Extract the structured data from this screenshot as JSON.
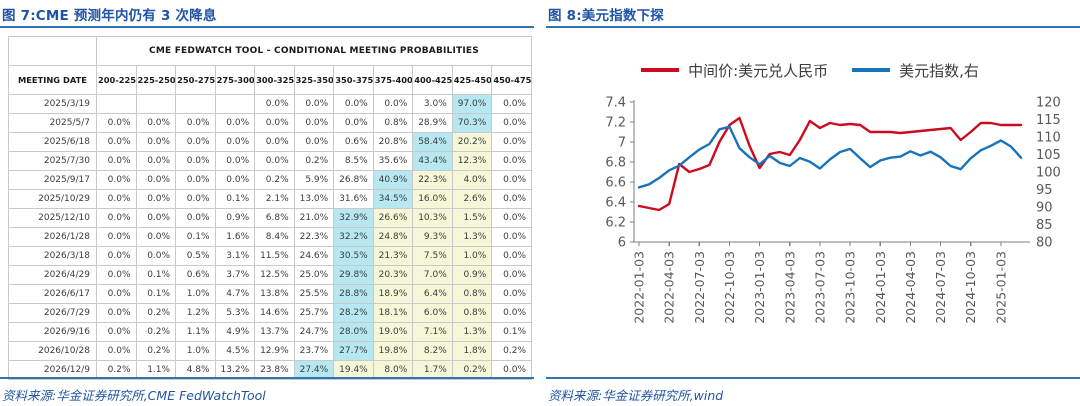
{
  "accent_colors": {
    "title_blue": "#1f53a6",
    "rule_blue": "#2e75b6",
    "source_blue": "#2155a3"
  },
  "left_panel": {
    "title": "图 7:CME 预测年内仍有 3 次降息",
    "source": "资料来源:华金证券研究所,CME FedWatchTool",
    "table": {
      "header_title": "CME FEDWATCH TOOL - CONDITIONAL MEETING PROBABILITIES",
      "date_col_header": "MEETING DATE",
      "rate_columns": [
        "200-225",
        "225-250",
        "250-275",
        "275-300",
        "300-325",
        "325-350",
        "350-375",
        "375-400",
        "400-425",
        "425-450",
        "450-475"
      ],
      "highlight_colors": {
        "modal_cell_cyan": "#b7e8f2",
        "tail_cell_yellow": "#f6f6d8"
      },
      "rows": [
        {
          "date": "2025/3/19",
          "values": [
            "",
            "",
            "",
            "",
            "0.0%",
            "0.0%",
            "0.0%",
            "0.0%",
            "3.0%",
            "97.0%",
            "0.0%"
          ],
          "cyan": 9,
          "yellow": []
        },
        {
          "date": "2025/5/7",
          "values": [
            "0.0%",
            "0.0%",
            "0.0%",
            "0.0%",
            "0.0%",
            "0.0%",
            "0.0%",
            "0.8%",
            "28.9%",
            "70.3%",
            "0.0%"
          ],
          "cyan": 9,
          "yellow": []
        },
        {
          "date": "2025/6/18",
          "values": [
            "0.0%",
            "0.0%",
            "0.0%",
            "0.0%",
            "0.0%",
            "0.0%",
            "0.6%",
            "20.8%",
            "58.4%",
            "20.2%",
            "0.0%"
          ],
          "cyan": 8,
          "yellow": [
            9
          ]
        },
        {
          "date": "2025/7/30",
          "values": [
            "0.0%",
            "0.0%",
            "0.0%",
            "0.0%",
            "0.0%",
            "0.2%",
            "8.5%",
            "35.6%",
            "43.4%",
            "12.3%",
            "0.0%"
          ],
          "cyan": 8,
          "yellow": [
            9
          ]
        },
        {
          "date": "2025/9/17",
          "values": [
            "0.0%",
            "0.0%",
            "0.0%",
            "0.0%",
            "0.2%",
            "5.9%",
            "26.8%",
            "40.9%",
            "22.3%",
            "4.0%",
            "0.0%"
          ],
          "cyan": 7,
          "yellow": [
            8,
            9
          ]
        },
        {
          "date": "2025/10/29",
          "values": [
            "0.0%",
            "0.0%",
            "0.0%",
            "0.1%",
            "2.1%",
            "13.0%",
            "31.6%",
            "34.5%",
            "16.0%",
            "2.6%",
            "0.0%"
          ],
          "cyan": 7,
          "yellow": [
            8,
            9
          ]
        },
        {
          "date": "2025/12/10",
          "values": [
            "0.0%",
            "0.0%",
            "0.0%",
            "0.9%",
            "6.8%",
            "21.0%",
            "32.9%",
            "26.6%",
            "10.3%",
            "1.5%",
            "0.0%"
          ],
          "cyan": 6,
          "yellow": [
            7,
            8,
            9
          ]
        },
        {
          "date": "2026/1/28",
          "values": [
            "0.0%",
            "0.0%",
            "0.1%",
            "1.6%",
            "8.4%",
            "22.3%",
            "32.2%",
            "24.8%",
            "9.3%",
            "1.3%",
            "0.0%"
          ],
          "cyan": 6,
          "yellow": [
            7,
            8,
            9
          ]
        },
        {
          "date": "2026/3/18",
          "values": [
            "0.0%",
            "0.0%",
            "0.5%",
            "3.1%",
            "11.5%",
            "24.6%",
            "30.5%",
            "21.3%",
            "7.5%",
            "1.0%",
            "0.0%"
          ],
          "cyan": 6,
          "yellow": [
            7,
            8,
            9
          ]
        },
        {
          "date": "2026/4/29",
          "values": [
            "0.0%",
            "0.1%",
            "0.6%",
            "3.7%",
            "12.5%",
            "25.0%",
            "29.8%",
            "20.3%",
            "7.0%",
            "0.9%",
            "0.0%"
          ],
          "cyan": 6,
          "yellow": [
            7,
            8,
            9
          ]
        },
        {
          "date": "2026/6/17",
          "values": [
            "0.0%",
            "0.1%",
            "1.0%",
            "4.7%",
            "13.8%",
            "25.5%",
            "28.8%",
            "18.9%",
            "6.4%",
            "0.8%",
            "0.0%"
          ],
          "cyan": 6,
          "yellow": [
            7,
            8,
            9
          ]
        },
        {
          "date": "2026/7/29",
          "values": [
            "0.0%",
            "0.2%",
            "1.2%",
            "5.3%",
            "14.6%",
            "25.7%",
            "28.2%",
            "18.1%",
            "6.0%",
            "0.8%",
            "0.0%"
          ],
          "cyan": 6,
          "yellow": [
            7,
            8,
            9
          ]
        },
        {
          "date": "2026/9/16",
          "values": [
            "0.0%",
            "0.2%",
            "1.1%",
            "4.9%",
            "13.7%",
            "24.7%",
            "28.0%",
            "19.0%",
            "7.1%",
            "1.3%",
            "0.1%"
          ],
          "cyan": 6,
          "yellow": [
            7,
            8,
            9
          ]
        },
        {
          "date": "2026/10/28",
          "values": [
            "0.0%",
            "0.2%",
            "1.0%",
            "4.5%",
            "12.9%",
            "23.7%",
            "27.7%",
            "19.8%",
            "8.2%",
            "1.8%",
            "0.2%"
          ],
          "cyan": 6,
          "yellow": [
            7,
            8,
            9
          ]
        },
        {
          "date": "2026/12/9",
          "values": [
            "0.2%",
            "1.1%",
            "4.8%",
            "13.2%",
            "23.8%",
            "27.4%",
            "19.4%",
            "8.0%",
            "1.7%",
            "0.2%",
            "0.0%"
          ],
          "cyan": 5,
          "yellow": [
            6,
            7,
            8,
            9
          ]
        }
      ]
    }
  },
  "right_panel": {
    "title": "图 8:美元指数下探",
    "source": "资料来源:华金证券研究所,wind"
  },
  "chart_data": {
    "type": "line",
    "title": "美元指数下探",
    "legend_position": "top",
    "grid": false,
    "x_months": [
      "2022-01",
      "2022-02",
      "2022-03",
      "2022-04",
      "2022-05",
      "2022-06",
      "2022-07",
      "2022-08",
      "2022-09",
      "2022-10",
      "2022-11",
      "2022-12",
      "2023-01",
      "2023-02",
      "2023-03",
      "2023-04",
      "2023-05",
      "2023-06",
      "2023-07",
      "2023-08",
      "2023-09",
      "2023-10",
      "2023-11",
      "2023-12",
      "2024-01",
      "2024-02",
      "2024-03",
      "2024-04",
      "2024-05",
      "2024-06",
      "2024-07",
      "2024-08",
      "2024-09",
      "2024-10",
      "2024-11",
      "2024-12",
      "2025-01",
      "2025-02",
      "2025-03"
    ],
    "x_tick_labels": [
      "2022-01-03",
      "2022-04-03",
      "2022-07-03",
      "2022-10-03",
      "2023-01-03",
      "2023-04-03",
      "2023-07-03",
      "2023-10-03",
      "2024-01-03",
      "2024-04-03",
      "2024-07-03",
      "2024-10-03",
      "2025-01-03"
    ],
    "left_axis": {
      "min": 6,
      "max": 7.4,
      "ticks": [
        "7.4",
        "7.2",
        "7",
        "6.8",
        "6.6",
        "6.4",
        "6.2",
        "6"
      ]
    },
    "right_axis": {
      "min": 80,
      "max": 120,
      "ticks": [
        "120",
        "115",
        "110",
        "105",
        "100",
        "95",
        "90",
        "85",
        "80"
      ]
    },
    "series": [
      {
        "name": "中间价:美元兑人民币",
        "color": "#ce0a1f",
        "axis": "left",
        "values": [
          6.36,
          6.34,
          6.32,
          6.38,
          6.78,
          6.7,
          6.73,
          6.77,
          7.0,
          7.17,
          7.24,
          6.96,
          6.74,
          6.88,
          6.9,
          6.87,
          7.02,
          7.21,
          7.14,
          7.19,
          7.17,
          7.18,
          7.17,
          7.1,
          7.1,
          7.1,
          7.09,
          7.1,
          7.11,
          7.12,
          7.13,
          7.14,
          7.02,
          7.1,
          7.19,
          7.19,
          7.17,
          7.17,
          7.17
        ]
      },
      {
        "name": "美元指数,右",
        "color": "#1873b9",
        "axis": "right",
        "values": [
          95.6,
          96.5,
          98.3,
          100.5,
          101.8,
          104.2,
          106.4,
          108.0,
          112.2,
          112.9,
          106.8,
          104.2,
          102.2,
          104.6,
          102.6,
          101.7,
          104.0,
          102.9,
          101.0,
          103.6,
          105.7,
          106.6,
          103.9,
          101.4,
          103.3,
          104.1,
          104.4,
          105.9,
          104.7,
          105.8,
          104.2,
          101.7,
          100.8,
          103.9,
          106.2,
          107.5,
          109.0,
          107.3,
          104.1
        ]
      }
    ]
  }
}
